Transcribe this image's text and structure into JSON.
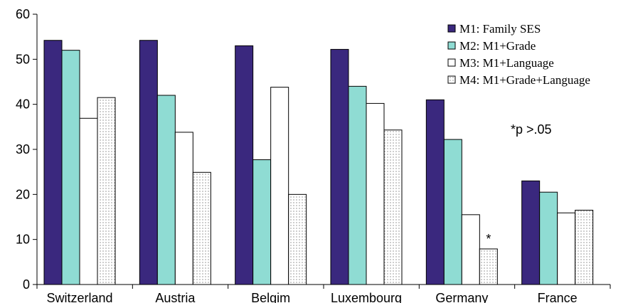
{
  "chart_data": {
    "type": "bar",
    "categories": [
      "Switzerland",
      "Austria",
      "Belgim",
      "Luxembourg",
      "Germany",
      "France"
    ],
    "series": [
      {
        "name": "M1: Family SES",
        "values": [
          54.2,
          54.2,
          53.0,
          52.2,
          41.0,
          23.0
        ],
        "fill": "#3a287e",
        "pattern": "solid"
      },
      {
        "name": "M2: M1+Grade",
        "values": [
          52.0,
          42.0,
          27.7,
          44.0,
          32.2,
          20.5
        ],
        "fill": "#8fdcd3",
        "pattern": "solid"
      },
      {
        "name": "M3: M1+Language",
        "values": [
          36.9,
          33.8,
          43.8,
          40.2,
          15.5,
          15.9
        ],
        "fill": "#ffffff",
        "pattern": "solid"
      },
      {
        "name": "M4: M1+Grade+Language",
        "values": [
          41.5,
          24.9,
          20.0,
          34.3,
          7.9,
          16.5
        ],
        "fill": "#ffffff",
        "pattern": "dots"
      }
    ],
    "ylim": [
      0,
      60
    ],
    "yticks": [
      0,
      10,
      20,
      30,
      40,
      50,
      60
    ],
    "grid": false,
    "legend_position": "top-right",
    "annotations": [
      {
        "text": "*",
        "category": "Germany",
        "series": "M4: M1+Grade+Language"
      },
      {
        "text": "*p >.05"
      }
    ],
    "title": "",
    "xlabel": "",
    "ylabel": ""
  }
}
